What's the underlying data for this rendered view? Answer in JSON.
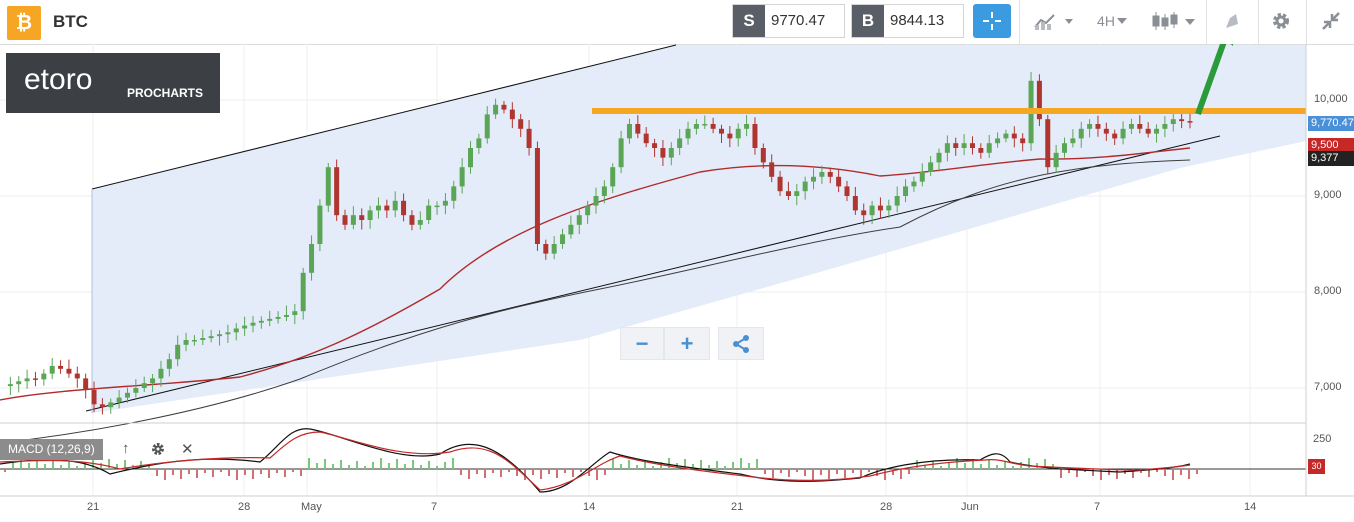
{
  "header": {
    "symbol": "BTC",
    "logo_glyph": "₿",
    "sell": {
      "label": "S",
      "value": "9770.47"
    },
    "buy": {
      "label": "B",
      "value": "9844.13"
    },
    "timeframe": "4H",
    "icons": [
      "crosshair-icon",
      "indicators-icon",
      "timeframe-icon",
      "candles-icon",
      "drawing-icon",
      "gear-icon",
      "collapse-icon"
    ]
  },
  "branding": {
    "name": "etoro",
    "product": "PROCHARTS"
  },
  "zoom": {
    "minus": "−",
    "plus": "+",
    "share_icon": "share-icon"
  },
  "macd": {
    "label": "MACD (12,26,9)",
    "up": "↑",
    "close": "✕"
  },
  "colors": {
    "orange": "#f5a623",
    "ma_red": "#b22a2a",
    "up": "#5aa556",
    "down": "#b0352f",
    "channel_fill": "#e4ecfa",
    "accent": "#3b9be0"
  },
  "chart_data": {
    "type": "candlestick",
    "price_axis": {
      "ticks": [
        "10,000",
        "9,000",
        "8,000",
        "7,000"
      ],
      "ylim": [
        6800,
        10350
      ]
    },
    "x_labels": [
      "21",
      "28",
      "May",
      "7",
      "14",
      "21",
      "28",
      "Jun",
      "7",
      "14"
    ],
    "price_flags": [
      {
        "value": "9,770.47",
        "color": "#4a90d9"
      },
      {
        "value": "9,500",
        "color": "#c62828"
      },
      {
        "value": "9,377",
        "color": "#222222"
      }
    ],
    "resistance_level": 9880,
    "close_series": [
      7020,
      7040,
      7070,
      7100,
      7090,
      7150,
      7230,
      7200,
      7150,
      7100,
      6980,
      6830,
      6800,
      6850,
      6900,
      6950,
      7000,
      7050,
      7100,
      7200,
      7300,
      7450,
      7500,
      7500,
      7520,
      7540,
      7560,
      7580,
      7620,
      7650,
      7680,
      7700,
      7720,
      7740,
      7760,
      7800,
      8200,
      8500,
      8900,
      9300,
      8800,
      8700,
      8800,
      8750,
      8850,
      8900,
      8850,
      8950,
      8800,
      8700,
      8750,
      8900,
      8900,
      8950,
      9100,
      9300,
      9500,
      9600,
      9850,
      9950,
      9900,
      9800,
      9700,
      9500,
      8500,
      8400,
      8500,
      8600,
      8700,
      8800,
      8900,
      9000,
      9100,
      9300,
      9600,
      9750,
      9650,
      9550,
      9500,
      9400,
      9500,
      9600,
      9700,
      9750,
      9750,
      9700,
      9650,
      9600,
      9700,
      9750,
      9500,
      9350,
      9200,
      9050,
      9000,
      9050,
      9150,
      9200,
      9250,
      9200,
      9100,
      9000,
      8850,
      8800,
      8900,
      8850,
      8900,
      9000,
      9100,
      9150,
      9250,
      9350,
      9450,
      9550,
      9500,
      9550,
      9500,
      9450,
      9550,
      9600,
      9650,
      9600,
      9550,
      10200,
      9800,
      9300,
      9450,
      9550,
      9600,
      9700,
      9750,
      9700,
      9650,
      9600,
      9700,
      9750,
      9700,
      9650,
      9700,
      9750,
      9800,
      9780,
      9770
    ]
  }
}
